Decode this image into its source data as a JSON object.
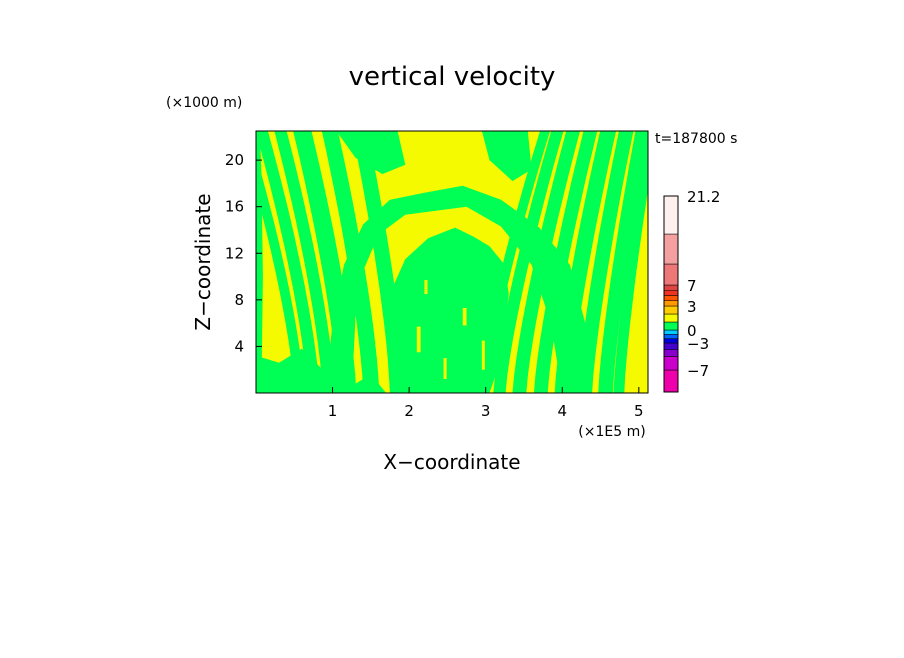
{
  "chart_data": {
    "type": "heatmap",
    "title": "vertical velocity",
    "xlabel": "X−coordinate",
    "ylabel": "Z−coordinate",
    "x_unit": "(×1E5 m)",
    "y_unit": "(×1000 m)",
    "time_label": "t=187800 s",
    "xlim": [
      0,
      5.12
    ],
    "ylim": [
      0,
      22.5
    ],
    "x_ticks": [
      1,
      2,
      3,
      4,
      5
    ],
    "y_ticks": [
      4,
      8,
      12,
      16,
      20
    ],
    "grid": false,
    "fill_colors": {
      "yellow": "#f5fa00",
      "green": "#00ff55"
    },
    "colorbar": {
      "tick_labels": [
        "21.2",
        "7",
        "3",
        "0",
        "−3",
        "−7"
      ],
      "tick_values": [
        21.2,
        7,
        3,
        0,
        -3,
        -7
      ],
      "bands": [
        {
          "from": -9,
          "to": -7,
          "color": "#ee00aa"
        },
        {
          "from": -7,
          "to": -5,
          "color": "#cc00cc"
        },
        {
          "from": -5,
          "to": -4,
          "color": "#8800cc"
        },
        {
          "from": -4,
          "to": -3,
          "color": "#4400cc"
        },
        {
          "from": -3,
          "to": -2,
          "color": "#0000dd"
        },
        {
          "from": -2,
          "to": -1,
          "color": "#0066ff"
        },
        {
          "from": -1,
          "to": 0,
          "color": "#00ccff"
        },
        {
          "from": 0,
          "to": 1,
          "color": "#00ff55"
        },
        {
          "from": 1,
          "to": 2,
          "color": "#f5fa00"
        },
        {
          "from": 2,
          "to": 3,
          "color": "#ffcc00"
        },
        {
          "from": 3,
          "to": 4,
          "color": "#ff9900"
        },
        {
          "from": 4,
          "to": 5,
          "color": "#ff5500"
        },
        {
          "from": 5,
          "to": 6,
          "color": "#ee3322"
        },
        {
          "from": 6,
          "to": 7,
          "color": "#dd4444"
        },
        {
          "from": 7,
          "to": 10,
          "color": "#ee7777"
        },
        {
          "from": 10,
          "to": 15,
          "color": "#f4a0a0"
        },
        {
          "from": 15,
          "to": 21.2,
          "color": "#fff0f0"
        }
      ]
    }
  }
}
